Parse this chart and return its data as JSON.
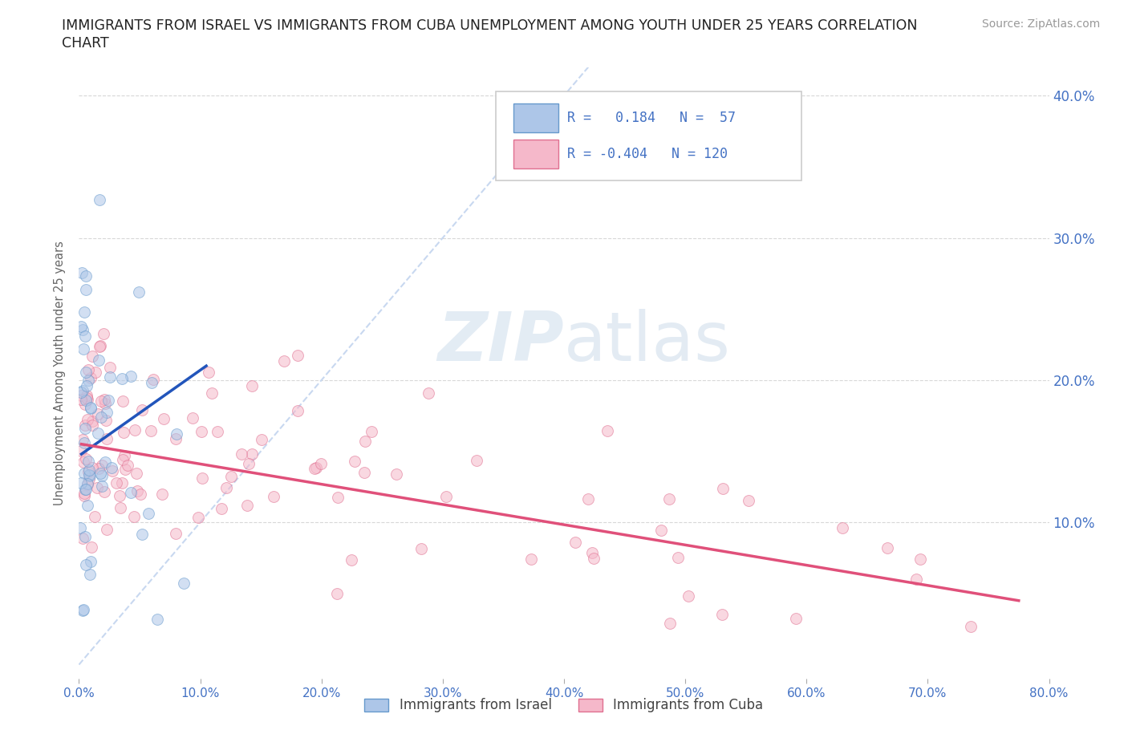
{
  "title_line1": "IMMIGRANTS FROM ISRAEL VS IMMIGRANTS FROM CUBA UNEMPLOYMENT AMONG YOUTH UNDER 25 YEARS CORRELATION",
  "title_line2": "CHART",
  "source": "Source: ZipAtlas.com",
  "ylabel": "Unemployment Among Youth under 25 years",
  "xlim": [
    0.0,
    0.8
  ],
  "ylim": [
    -0.01,
    0.42
  ],
  "xticks": [
    0.0,
    0.1,
    0.2,
    0.3,
    0.4,
    0.5,
    0.6,
    0.7,
    0.8
  ],
  "xtick_labels": [
    "0.0%",
    "10.0%",
    "20.0%",
    "30.0%",
    "40.0%",
    "50.0%",
    "60.0%",
    "70.0%",
    "80.0%"
  ],
  "yticks_right": [
    0.1,
    0.2,
    0.3,
    0.4
  ],
  "ytick_labels_right": [
    "10.0%",
    "20.0%",
    "30.0%",
    "40.0%"
  ],
  "israel_color": "#adc6e8",
  "cuba_color": "#f5b8ca",
  "israel_edge": "#6699cc",
  "cuba_edge": "#e07090",
  "trend_israel_color": "#2255bb",
  "trend_cuba_color": "#e0507a",
  "diagonal_color": "#c8d8f0",
  "R_israel": 0.184,
  "N_israel": 57,
  "R_cuba": -0.404,
  "N_cuba": 120,
  "watermark_zip": "ZIP",
  "watermark_atlas": "atlas",
  "legend_israel_label": "Immigrants from Israel",
  "legend_cuba_label": "Immigrants from Cuba",
  "grid_color": "#d8d8d8",
  "background_color": "#ffffff",
  "axis_label_color": "#4472c4",
  "marker_size": 100,
  "marker_alpha": 0.55,
  "israel_trend_x": [
    0.002,
    0.105
  ],
  "israel_trend_y": [
    0.148,
    0.21
  ],
  "cuba_trend_x": [
    0.002,
    0.775
  ],
  "cuba_trend_y": [
    0.155,
    0.045
  ]
}
